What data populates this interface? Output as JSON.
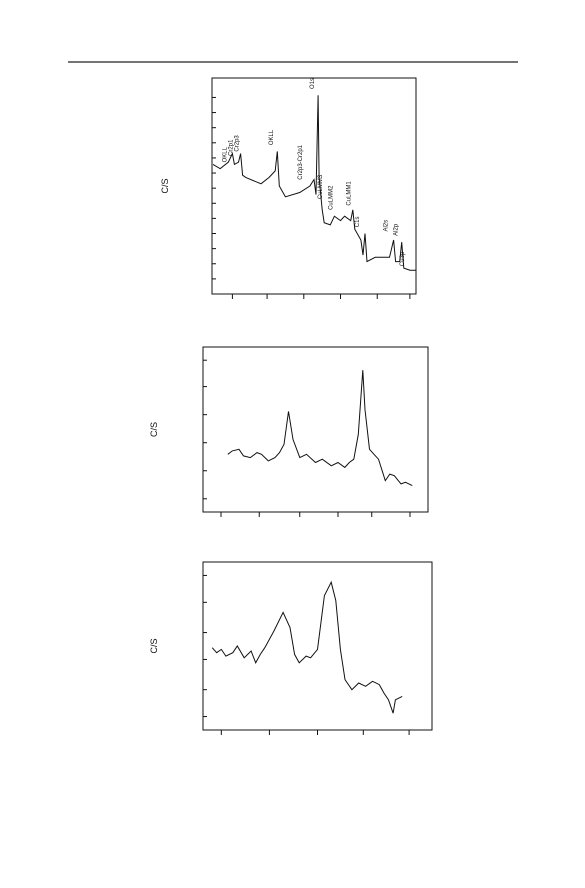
{
  "chart_data": [
    {
      "type": "line",
      "ylabel": "C/S",
      "xlim": [
        0,
        100
      ],
      "ylim": [
        0,
        100
      ],
      "xticks": [
        10,
        27,
        45,
        63,
        81,
        97
      ],
      "yticks": [
        7,
        14,
        21,
        28,
        35,
        42,
        49,
        56,
        63,
        70,
        77,
        84,
        91
      ],
      "color": "#111111",
      "x": [
        0.5,
        4,
        8,
        10,
        11,
        13,
        14,
        15,
        16.5,
        24,
        28,
        31,
        32,
        33,
        36,
        43,
        48,
        50,
        51,
        52,
        52.5,
        54,
        55,
        58,
        60,
        63,
        65,
        68,
        69,
        70,
        73,
        74,
        75,
        76,
        80,
        87,
        89,
        90,
        92,
        93,
        94,
        97,
        100
      ],
      "values": [
        60,
        58,
        61,
        65,
        60,
        61,
        65,
        55,
        54,
        51,
        54,
        57,
        66,
        50,
        45,
        47,
        50,
        53,
        46,
        92,
        54,
        39,
        33,
        32,
        36,
        34,
        36,
        34,
        39,
        30,
        25,
        18,
        28,
        15,
        17,
        17,
        25,
        15,
        15,
        24,
        12,
        11,
        11
      ],
      "annotations": [
        {
          "text": "OKLL",
          "x": 7,
          "y": 60
        },
        {
          "text": "Cr2p1",
          "x": 10,
          "y": 63
        },
        {
          "text": "Cr2p3",
          "x": 13,
          "y": 65
        },
        {
          "text": "OKLL",
          "x": 30,
          "y": 68
        },
        {
          "text": "Cr2p3-Cr2p1",
          "x": 44,
          "y": 52
        },
        {
          "text": "O1s",
          "x": 50,
          "y": 94
        },
        {
          "text": "CuLMM3",
          "x": 54,
          "y": 43
        },
        {
          "text": "CuLMM2",
          "x": 59,
          "y": 38
        },
        {
          "text": "CuLMM1",
          "x": 68,
          "y": 40
        },
        {
          "text": "C1s",
          "x": 72,
          "y": 30
        },
        {
          "text": "Al2s",
          "x": 86,
          "y": 28
        },
        {
          "text": "Al2p",
          "x": 91,
          "y": 26
        },
        {
          "text": "Cu3p",
          "x": 94,
          "y": 12
        }
      ]
    },
    {
      "type": "line",
      "ylabel": "C/S",
      "xlim": [
        0,
        100
      ],
      "ylim": [
        0,
        100
      ],
      "xticks": [
        8,
        25,
        43,
        60,
        75,
        92
      ],
      "yticks": [
        8,
        25,
        42,
        59,
        76,
        92
      ],
      "color": "#111111",
      "x": [
        11,
        13,
        16,
        18,
        21,
        24,
        26,
        29,
        32,
        34,
        36,
        38,
        40,
        43,
        46,
        50,
        53,
        57,
        60,
        63,
        65,
        67,
        69,
        71,
        72,
        74,
        76,
        78,
        81,
        83,
        85,
        88,
        90,
        93
      ],
      "values": [
        35,
        37,
        38,
        34,
        33,
        36,
        35,
        31,
        33,
        36,
        41,
        61,
        44,
        33,
        35,
        30,
        32,
        28,
        30,
        27,
        30,
        32,
        47,
        86,
        62,
        38,
        35,
        32,
        19,
        23,
        22,
        17,
        18,
        16
      ]
    },
    {
      "type": "line",
      "ylabel": "C/S",
      "xlim": [
        0,
        100
      ],
      "ylim": [
        0,
        100
      ],
      "xticks": [
        8,
        29,
        50,
        70,
        90
      ],
      "yticks": [
        8,
        24,
        42,
        58,
        76,
        92
      ],
      "color": "#111111",
      "x": [
        4,
        6,
        8,
        10,
        13,
        15,
        18,
        21,
        23,
        25,
        27,
        31,
        35,
        38,
        40,
        42,
        45,
        47,
        50,
        53,
        56,
        58,
        60,
        62,
        65,
        68,
        71,
        74,
        77,
        79,
        81,
        83,
        84,
        87
      ],
      "values": [
        49,
        46,
        48,
        44,
        46,
        50,
        43,
        47,
        40,
        45,
        49,
        59,
        70,
        61,
        45,
        40,
        44,
        43,
        48,
        80,
        88,
        77,
        48,
        30,
        24,
        28,
        26,
        29,
        27,
        22,
        18,
        10,
        18,
        20
      ]
    }
  ]
}
